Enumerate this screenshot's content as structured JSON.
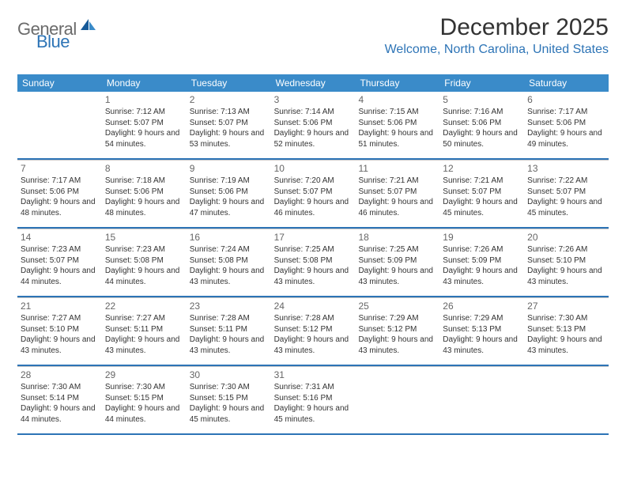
{
  "brand": {
    "part1": "General",
    "part2": "Blue"
  },
  "title": "December 2025",
  "location": "Welcome, North Carolina, United States",
  "colors": {
    "header_bg": "#3a8bc9",
    "accent": "#2d74b6",
    "text": "#333333",
    "muted": "#666666",
    "rule": "#c8c8c8",
    "bg": "#ffffff"
  },
  "daysOfWeek": [
    "Sunday",
    "Monday",
    "Tuesday",
    "Wednesday",
    "Thursday",
    "Friday",
    "Saturday"
  ],
  "weeks": [
    [
      {
        "num": "",
        "sunrise": "",
        "sunset": "",
        "daylight": ""
      },
      {
        "num": "1",
        "sunrise": "Sunrise: 7:12 AM",
        "sunset": "Sunset: 5:07 PM",
        "daylight": "Daylight: 9 hours and 54 minutes."
      },
      {
        "num": "2",
        "sunrise": "Sunrise: 7:13 AM",
        "sunset": "Sunset: 5:07 PM",
        "daylight": "Daylight: 9 hours and 53 minutes."
      },
      {
        "num": "3",
        "sunrise": "Sunrise: 7:14 AM",
        "sunset": "Sunset: 5:06 PM",
        "daylight": "Daylight: 9 hours and 52 minutes."
      },
      {
        "num": "4",
        "sunrise": "Sunrise: 7:15 AM",
        "sunset": "Sunset: 5:06 PM",
        "daylight": "Daylight: 9 hours and 51 minutes."
      },
      {
        "num": "5",
        "sunrise": "Sunrise: 7:16 AM",
        "sunset": "Sunset: 5:06 PM",
        "daylight": "Daylight: 9 hours and 50 minutes."
      },
      {
        "num": "6",
        "sunrise": "Sunrise: 7:17 AM",
        "sunset": "Sunset: 5:06 PM",
        "daylight": "Daylight: 9 hours and 49 minutes."
      }
    ],
    [
      {
        "num": "7",
        "sunrise": "Sunrise: 7:17 AM",
        "sunset": "Sunset: 5:06 PM",
        "daylight": "Daylight: 9 hours and 48 minutes."
      },
      {
        "num": "8",
        "sunrise": "Sunrise: 7:18 AM",
        "sunset": "Sunset: 5:06 PM",
        "daylight": "Daylight: 9 hours and 48 minutes."
      },
      {
        "num": "9",
        "sunrise": "Sunrise: 7:19 AM",
        "sunset": "Sunset: 5:06 PM",
        "daylight": "Daylight: 9 hours and 47 minutes."
      },
      {
        "num": "10",
        "sunrise": "Sunrise: 7:20 AM",
        "sunset": "Sunset: 5:07 PM",
        "daylight": "Daylight: 9 hours and 46 minutes."
      },
      {
        "num": "11",
        "sunrise": "Sunrise: 7:21 AM",
        "sunset": "Sunset: 5:07 PM",
        "daylight": "Daylight: 9 hours and 46 minutes."
      },
      {
        "num": "12",
        "sunrise": "Sunrise: 7:21 AM",
        "sunset": "Sunset: 5:07 PM",
        "daylight": "Daylight: 9 hours and 45 minutes."
      },
      {
        "num": "13",
        "sunrise": "Sunrise: 7:22 AM",
        "sunset": "Sunset: 5:07 PM",
        "daylight": "Daylight: 9 hours and 45 minutes."
      }
    ],
    [
      {
        "num": "14",
        "sunrise": "Sunrise: 7:23 AM",
        "sunset": "Sunset: 5:07 PM",
        "daylight": "Daylight: 9 hours and 44 minutes."
      },
      {
        "num": "15",
        "sunrise": "Sunrise: 7:23 AM",
        "sunset": "Sunset: 5:08 PM",
        "daylight": "Daylight: 9 hours and 44 minutes."
      },
      {
        "num": "16",
        "sunrise": "Sunrise: 7:24 AM",
        "sunset": "Sunset: 5:08 PM",
        "daylight": "Daylight: 9 hours and 43 minutes."
      },
      {
        "num": "17",
        "sunrise": "Sunrise: 7:25 AM",
        "sunset": "Sunset: 5:08 PM",
        "daylight": "Daylight: 9 hours and 43 minutes."
      },
      {
        "num": "18",
        "sunrise": "Sunrise: 7:25 AM",
        "sunset": "Sunset: 5:09 PM",
        "daylight": "Daylight: 9 hours and 43 minutes."
      },
      {
        "num": "19",
        "sunrise": "Sunrise: 7:26 AM",
        "sunset": "Sunset: 5:09 PM",
        "daylight": "Daylight: 9 hours and 43 minutes."
      },
      {
        "num": "20",
        "sunrise": "Sunrise: 7:26 AM",
        "sunset": "Sunset: 5:10 PM",
        "daylight": "Daylight: 9 hours and 43 minutes."
      }
    ],
    [
      {
        "num": "21",
        "sunrise": "Sunrise: 7:27 AM",
        "sunset": "Sunset: 5:10 PM",
        "daylight": "Daylight: 9 hours and 43 minutes."
      },
      {
        "num": "22",
        "sunrise": "Sunrise: 7:27 AM",
        "sunset": "Sunset: 5:11 PM",
        "daylight": "Daylight: 9 hours and 43 minutes."
      },
      {
        "num": "23",
        "sunrise": "Sunrise: 7:28 AM",
        "sunset": "Sunset: 5:11 PM",
        "daylight": "Daylight: 9 hours and 43 minutes."
      },
      {
        "num": "24",
        "sunrise": "Sunrise: 7:28 AM",
        "sunset": "Sunset: 5:12 PM",
        "daylight": "Daylight: 9 hours and 43 minutes."
      },
      {
        "num": "25",
        "sunrise": "Sunrise: 7:29 AM",
        "sunset": "Sunset: 5:12 PM",
        "daylight": "Daylight: 9 hours and 43 minutes."
      },
      {
        "num": "26",
        "sunrise": "Sunrise: 7:29 AM",
        "sunset": "Sunset: 5:13 PM",
        "daylight": "Daylight: 9 hours and 43 minutes."
      },
      {
        "num": "27",
        "sunrise": "Sunrise: 7:30 AM",
        "sunset": "Sunset: 5:13 PM",
        "daylight": "Daylight: 9 hours and 43 minutes."
      }
    ],
    [
      {
        "num": "28",
        "sunrise": "Sunrise: 7:30 AM",
        "sunset": "Sunset: 5:14 PM",
        "daylight": "Daylight: 9 hours and 44 minutes."
      },
      {
        "num": "29",
        "sunrise": "Sunrise: 7:30 AM",
        "sunset": "Sunset: 5:15 PM",
        "daylight": "Daylight: 9 hours and 44 minutes."
      },
      {
        "num": "30",
        "sunrise": "Sunrise: 7:30 AM",
        "sunset": "Sunset: 5:15 PM",
        "daylight": "Daylight: 9 hours and 45 minutes."
      },
      {
        "num": "31",
        "sunrise": "Sunrise: 7:31 AM",
        "sunset": "Sunset: 5:16 PM",
        "daylight": "Daylight: 9 hours and 45 minutes."
      },
      {
        "num": "",
        "sunrise": "",
        "sunset": "",
        "daylight": ""
      },
      {
        "num": "",
        "sunrise": "",
        "sunset": "",
        "daylight": ""
      },
      {
        "num": "",
        "sunrise": "",
        "sunset": "",
        "daylight": ""
      }
    ]
  ]
}
